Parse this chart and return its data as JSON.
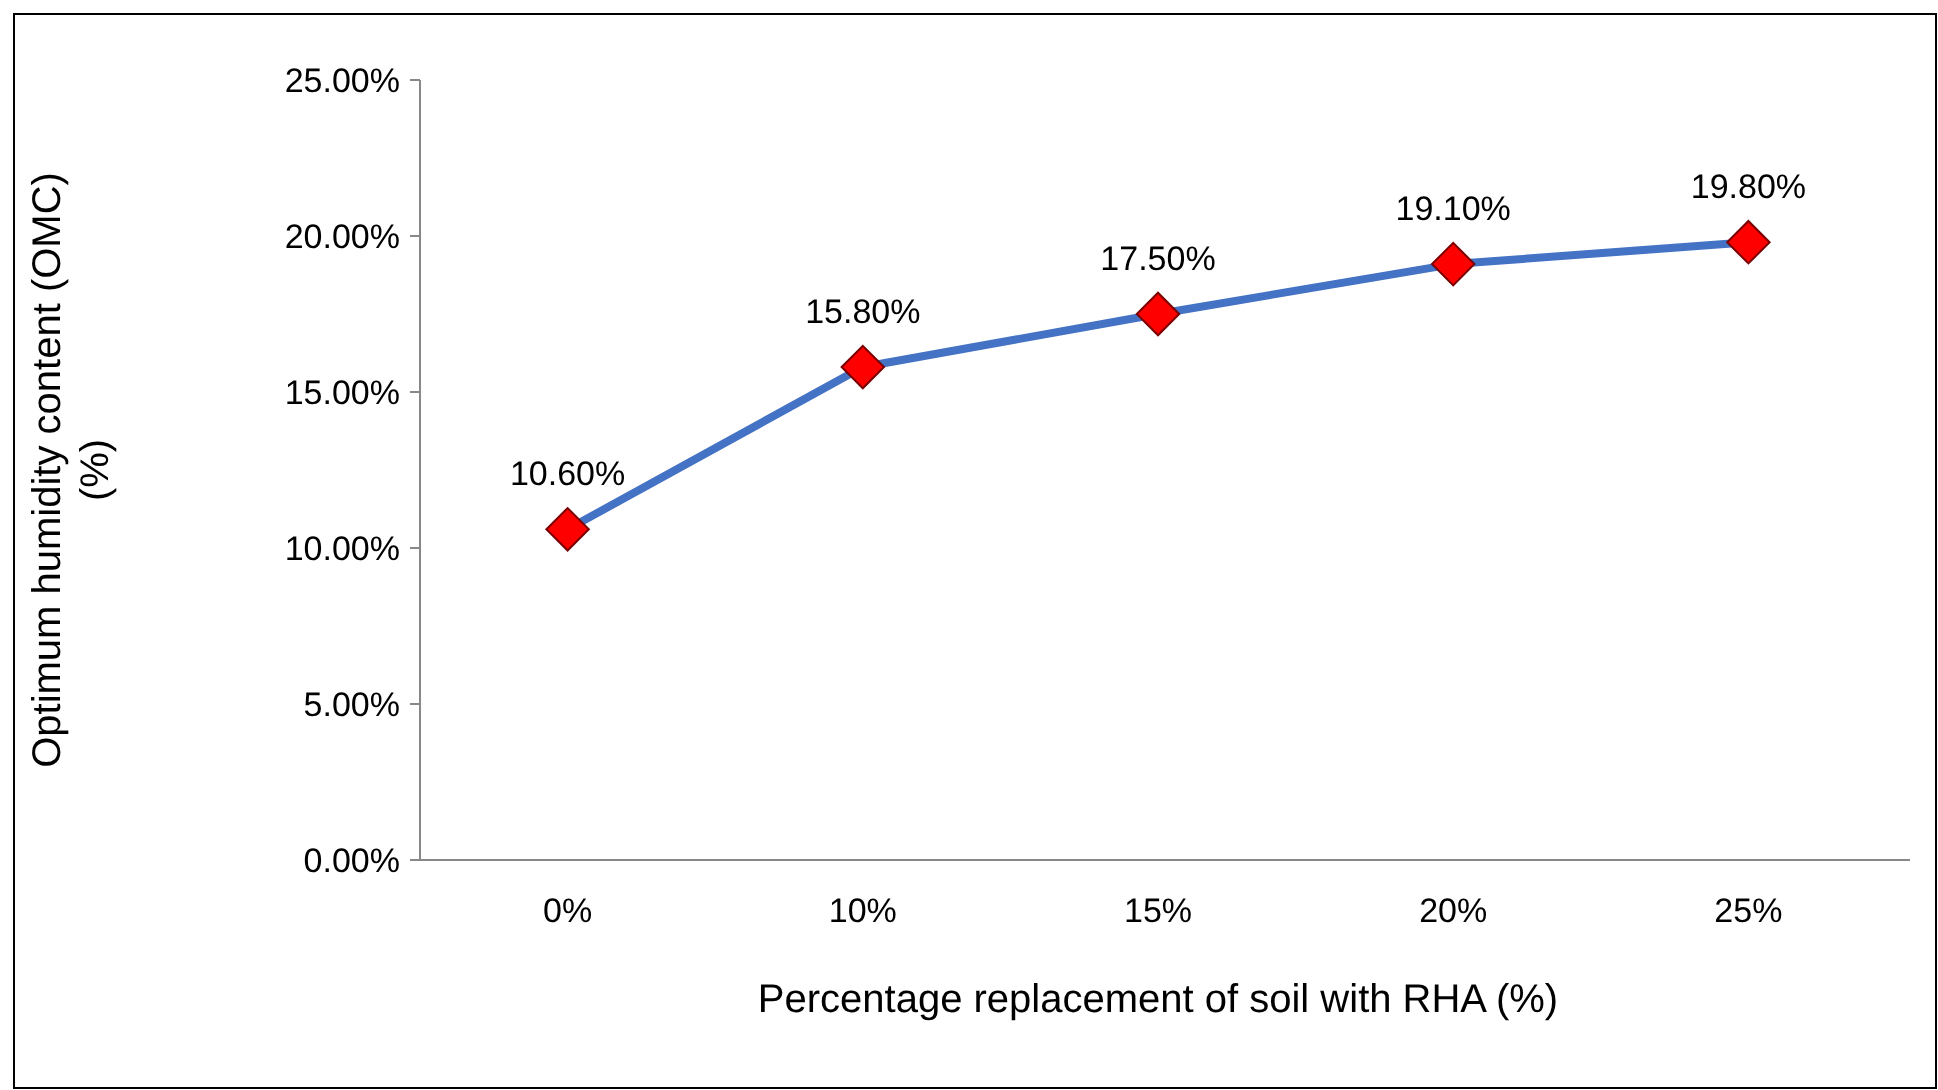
{
  "chart_data": {
    "type": "line",
    "xlabel": "Percentage replacement of soil with RHA (%)",
    "ylabel": "Optimum humidity content  (OMC) (%)",
    "categories": [
      "0%",
      "10%",
      "15%",
      "20%",
      "25%"
    ],
    "series": [
      {
        "color": "#4472c4",
        "colors": [
          "#ff0000",
          "#ff0000",
          "#ff0000",
          "#ff0000",
          "#ff0000"
        ],
        "values": [
          10.6,
          15.8,
          17.5,
          19.1,
          19.8
        ],
        "value_labels": [
          "10.60%",
          "15.80%",
          "17.50%",
          "19.10%",
          "19.80%"
        ]
      }
    ],
    "ylim": [
      0,
      25
    ],
    "yticks": [
      {
        "value": 0,
        "label": "0.00%"
      },
      {
        "value": 5,
        "label": "5.00%"
      },
      {
        "value": 10,
        "label": "10.00%"
      },
      {
        "value": 15,
        "label": "15.00%"
      },
      {
        "value": 20,
        "label": "20.00%"
      },
      {
        "value": 25,
        "label": "25.00%"
      }
    ],
    "grid": false,
    "marker": "diamond",
    "line_style": "solid"
  }
}
